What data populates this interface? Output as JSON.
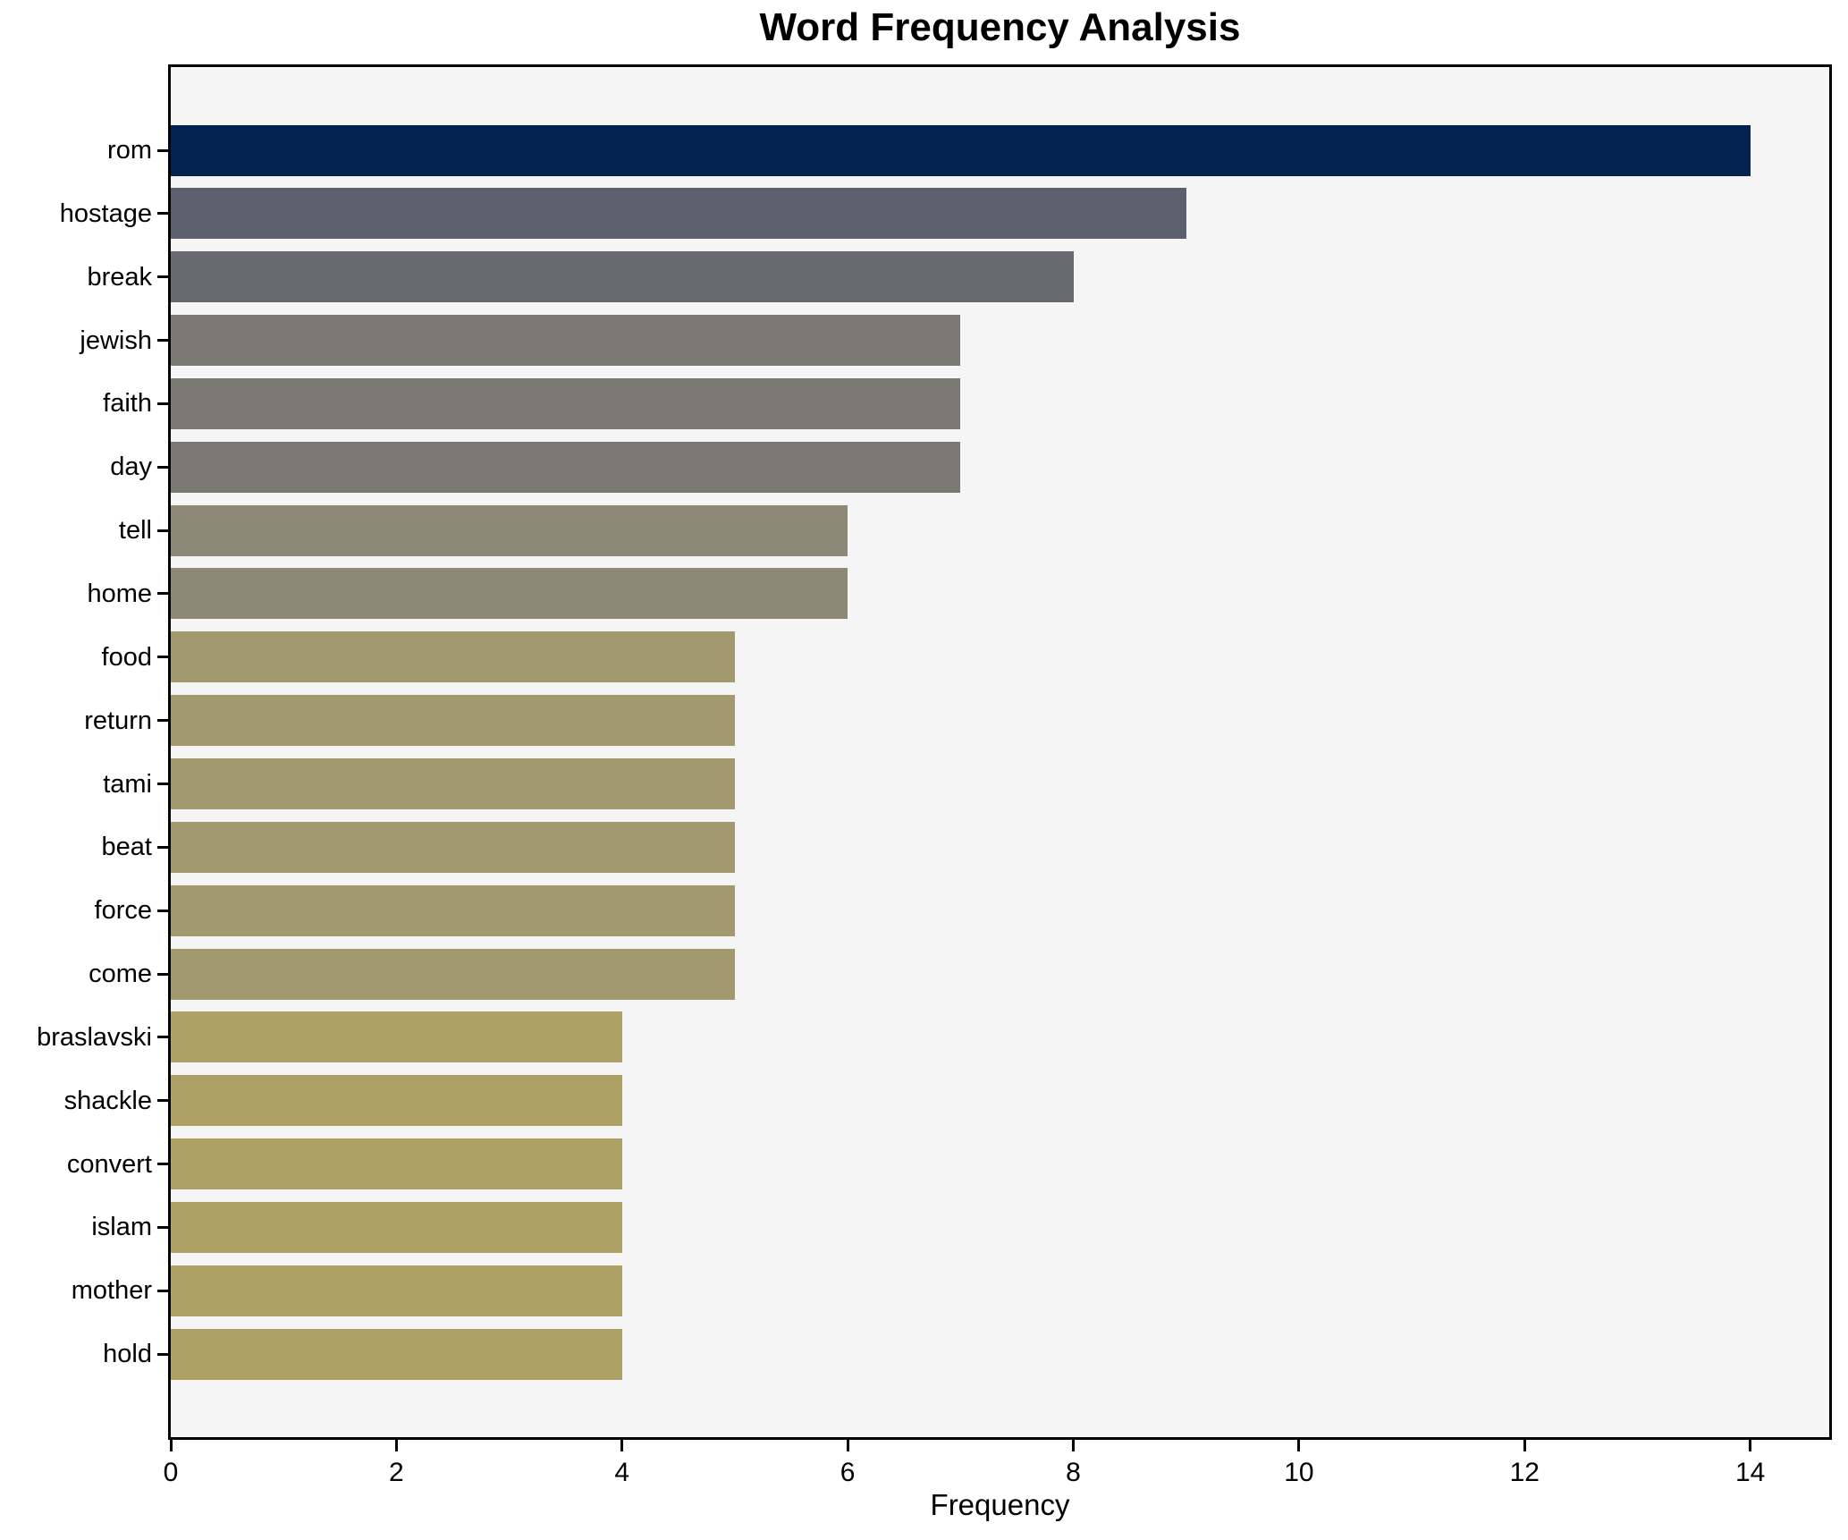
{
  "title": "Word Frequency Analysis",
  "chart_data": {
    "type": "bar",
    "orientation": "horizontal",
    "title": "Word Frequency Analysis",
    "xlabel": "Frequency",
    "ylabel": "",
    "categories": [
      "rom",
      "hostage",
      "break",
      "jewish",
      "faith",
      "day",
      "tell",
      "home",
      "food",
      "return",
      "tami",
      "beat",
      "force",
      "come",
      "braslavski",
      "shackle",
      "convert",
      "islam",
      "mother",
      "hold"
    ],
    "values": [
      14,
      9,
      8,
      7,
      7,
      7,
      6,
      6,
      5,
      5,
      5,
      5,
      5,
      5,
      4,
      4,
      4,
      4,
      4,
      4
    ],
    "bar_colors": [
      "#032250",
      "#5b5f6e",
      "#696a70",
      "#7a7872",
      "#7a7872",
      "#7a7872",
      "#8e8877",
      "#8e8877",
      "#a2996f",
      "#a2996f",
      "#a2996f",
      "#a2996f",
      "#a2996f",
      "#a2996f",
      "#ada166",
      "#ada166",
      "#ada166",
      "#ada166",
      "#ada166",
      "#ada166"
    ],
    "x_ticks": [
      0,
      2,
      4,
      6,
      8,
      10,
      12,
      14
    ],
    "xlim": [
      0,
      14.7
    ],
    "grid": false,
    "legend": "none",
    "plot_background": "#f5f5f6",
    "figure_background": "#ffffff",
    "spine_color": "#000000",
    "text_color": "#000000"
  }
}
